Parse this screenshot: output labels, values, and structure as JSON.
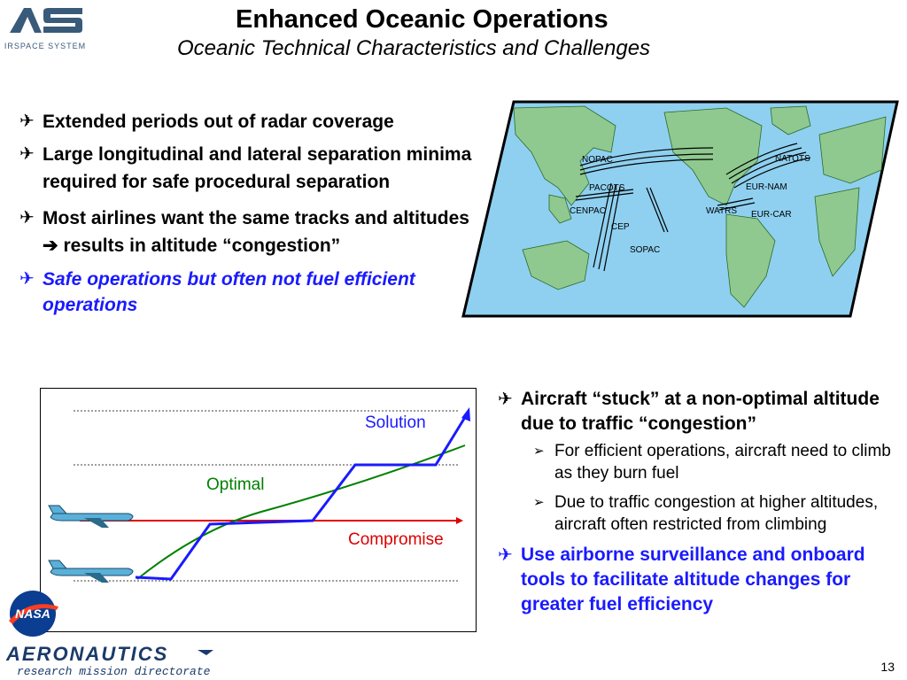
{
  "header": {
    "logo_text": "AIRSPACE SYSTEMS",
    "title": "Enhanced Oceanic Operations",
    "subtitle": "Oceanic Technical Characteristics and Challenges"
  },
  "left_bullets": [
    {
      "text": "Extended periods out of radar coverage"
    },
    {
      "text": "Large longitudinal and lateral separation minima required for safe procedural separation"
    },
    {
      "text_before": "Most airlines want the same tracks and altitudes ",
      "arrow": "➔",
      "text_after": " results in altitude “congestion”"
    },
    {
      "text": "Safe operations but often not fuel efficient operations"
    }
  ],
  "bullet_glyph": "✈",
  "map_labels": {
    "nopac": "NOPAC",
    "pacots": "PACOTS",
    "cenpac": "CENPAC",
    "cep": "CEP",
    "sopac": "SOPAC",
    "natots": "NATOTS",
    "eur_nam": "EUR-NAM",
    "watrs": "WATRS",
    "eur_car": "EUR-CAR"
  },
  "chart": {
    "label_solution": "Solution",
    "label_optimal": "Optimal",
    "label_compromise": "Compromise",
    "colors": {
      "solution": "#1a1aff",
      "optimal": "#008000",
      "compromise": "#dd0000"
    }
  },
  "right_bullets": {
    "main1": "Aircraft “stuck” at a non-optimal altitude due to traffic “congestion”",
    "sub1": "For efficient operations, aircraft need to climb as they burn fuel",
    "sub2": "Due to traffic congestion at higher altitudes, aircraft often restricted from climbing",
    "main2": "Use airborne surveillance and onboard tools to facilitate altitude changes for greater fuel efficiency"
  },
  "footer": {
    "nasa_text": "NASA",
    "aero_text": "AERONAUTICS",
    "aero_sub": "research mission directorate",
    "page_number": "13"
  }
}
